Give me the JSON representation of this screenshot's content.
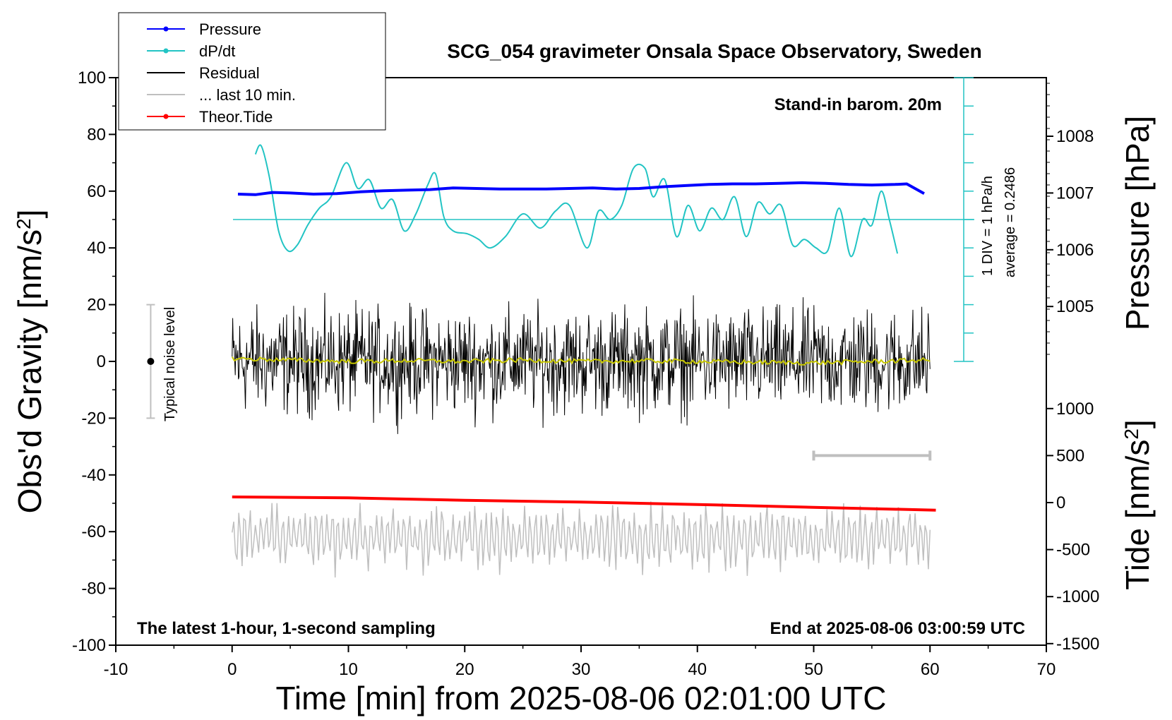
{
  "chart_data": {
    "type": "line",
    "title": "SCG_054 gravimeter Onsala Space Observatory, Sweden",
    "xlabel": "Time [min] from 2025-08-06 02:01:00 UTC",
    "ylabel": "Obs'd Gravity [nm/s",
    "ylabel_sup": "2",
    "ylabel_tail": "]",
    "right_top_label": "Pressure [hPa]",
    "right_bottom_label": "Tide [nm/s",
    "right_bottom_sup": "2",
    "right_bottom_tail": "]",
    "xlim": [
      -10,
      70
    ],
    "ylim": [
      -100,
      100
    ],
    "x_ticks": [
      "-10",
      "0",
      "10",
      "20",
      "30",
      "40",
      "50",
      "60",
      "70"
    ],
    "y_ticks": [
      "100",
      "80",
      "60",
      "40",
      "20",
      "0",
      "-20",
      "-40",
      "-60",
      "-80",
      "-100"
    ],
    "pressure_ticks": [
      "1008",
      "1007",
      "1006",
      "1005"
    ],
    "tide_ticks": [
      "1000",
      "500",
      "0",
      "-500",
      "-1000",
      "-1500"
    ],
    "notes": {
      "barometer": "Stand-in barom. 20m",
      "sampling": "The latest 1-hour, 1-second sampling",
      "end_time": "End at 2025-08-06 03:00:59 UTC",
      "noise": "Typical noise level",
      "div": "1 DIV = 1 hPa/h",
      "average": "average = 0.2486"
    },
    "legend": [
      {
        "name": "Pressure",
        "color": "#0000ff",
        "marker": true
      },
      {
        "name": "dP/dt",
        "color": "#22c4c4",
        "marker": true
      },
      {
        "name": "Residual",
        "color": "#000000",
        "marker": false
      },
      {
        "name": "... last 10 min.",
        "color": "#bfbfbf",
        "marker": false
      },
      {
        "name": "Theor.Tide",
        "color": "#ff0000",
        "marker": true
      }
    ],
    "series": [
      {
        "name": "Pressure",
        "axis": "pressure_hPa",
        "x": [
          0.5,
          2,
          3.5,
          5,
          7,
          9,
          11,
          13,
          15,
          17,
          19,
          21,
          23,
          25,
          27,
          29,
          31,
          33,
          35,
          37,
          39,
          41,
          43,
          45,
          47,
          49,
          51,
          53,
          55,
          57,
          58,
          59.5
        ],
        "values": [
          1006.98,
          1006.97,
          1007.01,
          1007.0,
          1006.98,
          1006.99,
          1007.02,
          1007.04,
          1007.05,
          1007.06,
          1007.09,
          1007.08,
          1007.07,
          1007.07,
          1007.07,
          1007.08,
          1007.09,
          1007.07,
          1007.08,
          1007.11,
          1007.13,
          1007.15,
          1007.16,
          1007.16,
          1007.17,
          1007.18,
          1007.17,
          1007.15,
          1007.14,
          1007.15,
          1007.16,
          1006.99
        ]
      },
      {
        "name": "dP/dt",
        "axis": "gravity",
        "average_y": 50,
        "x": [
          2.0,
          2.5,
          3.2,
          4.0,
          4.8,
          5.6,
          6.5,
          7.5,
          8.5,
          9.8,
          10.8,
          11.8,
          12.8,
          13.8,
          14.8,
          15.8,
          16.8,
          17.5,
          18.2,
          19.0,
          20.2,
          21.2,
          22.2,
          23.5,
          25.0,
          26.5,
          27.8,
          29.0,
          30.5,
          31.5,
          32.5,
          33.5,
          34.5,
          35.5,
          36.2,
          37.2,
          38.2,
          39.2,
          40.2,
          41.2,
          42.2,
          43.2,
          44.2,
          45.2,
          46.2,
          47.2,
          48.2,
          49.2,
          50.2,
          51.2,
          52.2,
          53.2,
          54.2,
          55.0,
          55.8,
          56.5,
          57.2
        ],
        "values": [
          73,
          76,
          65,
          46,
          39,
          41,
          48,
          54,
          58,
          70,
          61,
          64,
          54,
          57,
          46,
          52,
          62,
          66,
          51,
          46,
          45,
          43,
          40,
          44,
          52,
          47,
          53,
          55,
          40,
          53,
          50,
          55,
          68,
          68,
          58,
          64,
          44,
          55,
          46,
          54,
          50,
          58,
          44,
          56,
          52,
          55,
          41,
          43,
          40,
          39,
          54,
          37,
          50,
          48,
          60,
          50,
          38
        ]
      },
      {
        "name": "Residual",
        "axis": "gravity",
        "x_range": [
          0,
          60
        ],
        "amplitude": 10,
        "values": [
          1,
          -1,
          0,
          2,
          -2,
          0,
          1,
          -1
        ]
      },
      {
        "name": "Residual smoothed",
        "axis": "gravity",
        "color": "#c8c800",
        "x": [
          0,
          5,
          10,
          15,
          20,
          25,
          30,
          35,
          40,
          45,
          50,
          55,
          60
        ],
        "values": [
          1,
          0.5,
          0,
          0.3,
          0,
          0.5,
          0,
          0.2,
          0,
          -0.3,
          -0.5,
          0,
          0.5
        ]
      },
      {
        "name": "... last 10 min.",
        "axis": "gravity",
        "x_range": [
          0,
          60
        ],
        "center": -62,
        "amplitude": 12
      },
      {
        "name": "Theor.Tide",
        "axis": "tide_nm_s2",
        "x": [
          0,
          10,
          20,
          30,
          40,
          50,
          60.5
        ],
        "values": [
          60,
          50,
          25,
          5,
          -20,
          -50,
          -80
        ]
      }
    ],
    "last_10min_bar": {
      "x_start": 50,
      "x_end": 60,
      "y_tide": 500
    },
    "noise_bar": {
      "x": -7,
      "y_min": -20,
      "y_max": 20,
      "center": 0
    }
  }
}
